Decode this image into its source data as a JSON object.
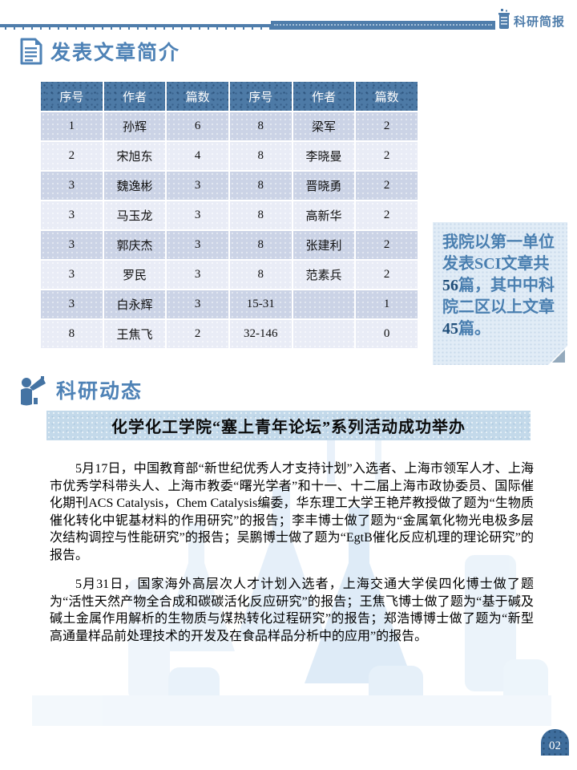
{
  "page": {
    "brand": "科研简报",
    "page_number": "02"
  },
  "sections": {
    "publications": "发表文章简介",
    "news": "科研动态"
  },
  "icons": {
    "header_right": "beaker-icon",
    "publications": "document-icon",
    "news": "announcer-icon"
  },
  "colors": {
    "accent": "#4f7dab",
    "section_title": "#4e82b6",
    "table_header_bg": "#4d7aa6",
    "row_odd_bg": "#cbd3e6",
    "row_even_bg": "#e9ecf6",
    "note_bg": "#e1ecf6",
    "note_text": "#4a7fb0",
    "note_number": "#1f4e79",
    "article_title_bg": "#c3d9ea",
    "badge_bg": "#3e6d9c"
  },
  "table": {
    "headers": [
      "序号",
      "作者",
      "篇数",
      "序号",
      "作者",
      "篇数"
    ],
    "rows": [
      [
        "1",
        "孙辉",
        "6",
        "8",
        "梁军",
        "2"
      ],
      [
        "2",
        "宋旭东",
        "4",
        "8",
        "李晓曼",
        "2"
      ],
      [
        "3",
        "魏逸彬",
        "3",
        "8",
        "晋晓勇",
        "2"
      ],
      [
        "3",
        "马玉龙",
        "3",
        "8",
        "高新华",
        "2"
      ],
      [
        "3",
        "郭庆杰",
        "3",
        "8",
        "张建利",
        "2"
      ],
      [
        "3",
        "罗民",
        "3",
        "8",
        "范素兵",
        "2"
      ],
      [
        "3",
        "白永辉",
        "3",
        "15-31",
        "",
        "1"
      ],
      [
        "8",
        "王焦飞",
        "2",
        "32-146",
        "",
        "0"
      ]
    ]
  },
  "note": {
    "part1": "我院以第一单位发表SCI文章共",
    "num1": "56",
    "part2": "篇，其中中科院二区以上文章",
    "num2": "45",
    "part3": "篇。"
  },
  "article": {
    "title": "化学化工学院“塞上青年论坛”系列活动成功举办",
    "paragraphs": [
      "5月17日，中国教育部“新世纪优秀人才支持计划”入选者、上海市领军人才、上海市优秀学科带头人、上海市教委“曙光学者”和十一、十二届上海市政协委员、国际催化期刊ACS Catalysis，Chem Catalysis编委，华东理工大学王艳芹教授做了题为“生物质催化转化中铌基材料的作用研究”的报告；李丰博士做了题为“金属氧化物光电极多层次结构调控与性能研究”的报告；吴鹏博士做了题为“EgtB催化反应机理的理论研究”的报告。",
      "5月31日，国家海外高层次人才计划入选者，上海交通大学侯四化博士做了题为“活性天然产物全合成和碳碳活化反应研究”的报告；王焦飞博士做了题为“基于碱及碱土金属作用解析的生物质与煤热转化过程研究”的报告；郑浩博博士做了题为“新型高通量样品前处理技术的开发及在食品样品分析中的应用”的报告。"
    ]
  }
}
